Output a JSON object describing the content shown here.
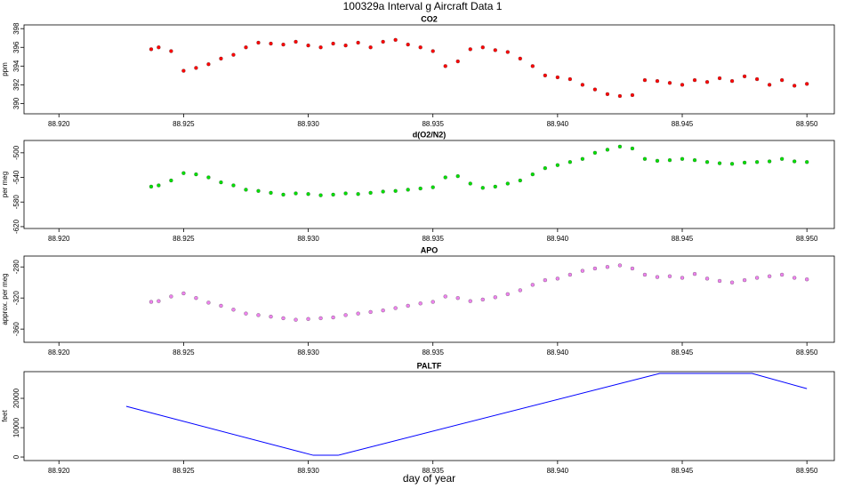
{
  "title": "100329a   Interval g Aircraft Data 1",
  "chart_data": [
    {
      "type": "scatter",
      "title": "CO2",
      "ylabel": "ppm",
      "color": "#ff0000",
      "xlim": [
        88.9186,
        88.9511
      ],
      "ylim": [
        388.9,
        398.4
      ],
      "xticks": [
        {
          "value": 88.92,
          "label": "88.920"
        },
        {
          "value": 88.925,
          "label": "88.925"
        },
        {
          "value": 88.93,
          "label": "88.930"
        },
        {
          "value": 88.935,
          "label": "88.935"
        },
        {
          "value": 88.94,
          "label": "88.940"
        },
        {
          "value": 88.945,
          "label": "88.945"
        },
        {
          "value": 88.95,
          "label": "88.950"
        }
      ],
      "yticks": [
        390,
        392,
        394,
        396,
        398
      ],
      "x": [
        88.9237,
        88.924,
        88.9245,
        88.925,
        88.9255,
        88.926,
        88.9265,
        88.927,
        88.9275,
        88.928,
        88.9285,
        88.929,
        88.9295,
        88.93,
        88.9305,
        88.931,
        88.9315,
        88.932,
        88.9325,
        88.933,
        88.9335,
        88.934,
        88.9345,
        88.935,
        88.9355,
        88.936,
        88.9365,
        88.937,
        88.9375,
        88.938,
        88.9385,
        88.939,
        88.9395,
        88.94,
        88.9405,
        88.941,
        88.9415,
        88.942,
        88.9425,
        88.943,
        88.9435,
        88.944,
        88.9445,
        88.945,
        88.9455,
        88.946,
        88.9465,
        88.947,
        88.9475,
        88.948,
        88.9485,
        88.949,
        88.9495,
        88.95
      ],
      "values": [
        395.8,
        396.0,
        395.6,
        393.5,
        393.8,
        394.2,
        394.8,
        395.2,
        396.0,
        396.5,
        396.4,
        396.3,
        396.6,
        396.2,
        396.0,
        396.4,
        396.2,
        396.5,
        396.0,
        396.6,
        396.8,
        396.3,
        396.0,
        395.6,
        394.0,
        394.5,
        395.8,
        396.0,
        395.7,
        395.5,
        394.8,
        394.0,
        393.0,
        392.8,
        392.6,
        392.0,
        391.5,
        391.0,
        390.8,
        390.9,
        392.5,
        392.4,
        392.2,
        392.0,
        392.5,
        392.3,
        392.7,
        392.4,
        392.9,
        392.6,
        392.0,
        392.5,
        391.9,
        392.1
      ]
    },
    {
      "type": "scatter",
      "title": "d(O2/N2)",
      "ylabel": "per meg",
      "color": "#00e000",
      "xlim": [
        88.9186,
        88.9511
      ],
      "ylim": [
        -623,
        -480
      ],
      "xticks": [
        {
          "value": 88.92,
          "label": "88.920"
        },
        {
          "value": 88.925,
          "label": "88.925"
        },
        {
          "value": 88.93,
          "label": "88.930"
        },
        {
          "value": 88.935,
          "label": "88.935"
        },
        {
          "value": 88.94,
          "label": "88.940"
        },
        {
          "value": 88.945,
          "label": "88.945"
        },
        {
          "value": 88.95,
          "label": "88.950"
        }
      ],
      "yticks": [
        -620,
        -580,
        -540,
        -500
      ],
      "x": [
        88.9237,
        88.924,
        88.9245,
        88.925,
        88.9255,
        88.926,
        88.9265,
        88.927,
        88.9275,
        88.928,
        88.9285,
        88.929,
        88.9295,
        88.93,
        88.9305,
        88.931,
        88.9315,
        88.932,
        88.9325,
        88.933,
        88.9335,
        88.934,
        88.9345,
        88.935,
        88.9355,
        88.936,
        88.9365,
        88.937,
        88.9375,
        88.938,
        88.9385,
        88.939,
        88.9395,
        88.94,
        88.9405,
        88.941,
        88.9415,
        88.942,
        88.9425,
        88.943,
        88.9435,
        88.944,
        88.9445,
        88.945,
        88.9455,
        88.946,
        88.9465,
        88.947,
        88.9475,
        88.948,
        88.9485,
        88.949,
        88.9495,
        88.95
      ],
      "values": [
        -555,
        -553,
        -545,
        -533,
        -535,
        -540,
        -548,
        -553,
        -560,
        -562,
        -565,
        -568,
        -566,
        -567,
        -569,
        -568,
        -566,
        -567,
        -565,
        -563,
        -562,
        -560,
        -558,
        -556,
        -540,
        -538,
        -550,
        -557,
        -555,
        -550,
        -545,
        -535,
        -525,
        -520,
        -515,
        -510,
        -500,
        -495,
        -490,
        -493,
        -510,
        -513,
        -512,
        -510,
        -512,
        -515,
        -517,
        -518,
        -516,
        -515,
        -514,
        -510,
        -514,
        -515
      ]
    },
    {
      "type": "scatter",
      "title": "APO",
      "ylabel": "approx. per meg",
      "color": "#ee82ee",
      "xlim": [
        88.9186,
        88.9511
      ],
      "ylim": [
        -377,
        -266
      ],
      "xticks": [
        {
          "value": 88.92,
          "label": "88.920"
        },
        {
          "value": 88.925,
          "label": "88.925"
        },
        {
          "value": 88.93,
          "label": "88.930"
        },
        {
          "value": 88.935,
          "label": "88.935"
        },
        {
          "value": 88.94,
          "label": "88.940"
        },
        {
          "value": 88.945,
          "label": "88.945"
        },
        {
          "value": 88.95,
          "label": "88.950"
        }
      ],
      "yticks": [
        -360,
        -320,
        -280
      ],
      "x": [
        88.9237,
        88.924,
        88.9245,
        88.925,
        88.9255,
        88.926,
        88.9265,
        88.927,
        88.9275,
        88.928,
        88.9285,
        88.929,
        88.9295,
        88.93,
        88.9305,
        88.931,
        88.9315,
        88.932,
        88.9325,
        88.933,
        88.9335,
        88.934,
        88.9345,
        88.935,
        88.9355,
        88.936,
        88.9365,
        88.937,
        88.9375,
        88.938,
        88.9385,
        88.939,
        88.9395,
        88.94,
        88.9405,
        88.941,
        88.9415,
        88.942,
        88.9425,
        88.943,
        88.9435,
        88.944,
        88.9445,
        88.945,
        88.9455,
        88.946,
        88.9465,
        88.947,
        88.9475,
        88.948,
        88.9485,
        88.949,
        88.9495,
        88.95
      ],
      "values": [
        -325,
        -324,
        -318,
        -314,
        -320,
        -326,
        -330,
        -335,
        -340,
        -342,
        -344,
        -346,
        -348,
        -347,
        -346,
        -345,
        -342,
        -340,
        -338,
        -336,
        -333,
        -330,
        -327,
        -325,
        -318,
        -320,
        -324,
        -322,
        -319,
        -315,
        -310,
        -303,
        -297,
        -295,
        -290,
        -285,
        -282,
        -280,
        -278,
        -282,
        -290,
        -293,
        -292,
        -294,
        -289,
        -295,
        -298,
        -300,
        -297,
        -294,
        -292,
        -290,
        -294,
        -296
      ]
    },
    {
      "type": "line",
      "title": "PALTF",
      "ylabel": "feet",
      "xlabel": "day of year",
      "color": "#0000ff",
      "xlim": [
        88.9186,
        88.9511
      ],
      "ylim": [
        -1200,
        29100
      ],
      "xticks": [
        {
          "value": 88.92,
          "label": "88.920"
        },
        {
          "value": 88.925,
          "label": "88.925"
        },
        {
          "value": 88.93,
          "label": "88.930"
        },
        {
          "value": 88.935,
          "label": "88.935"
        },
        {
          "value": 88.94,
          "label": "88.940"
        },
        {
          "value": 88.945,
          "label": "88.945"
        },
        {
          "value": 88.95,
          "label": "88.950"
        }
      ],
      "yticks": [
        0,
        10000,
        20000
      ],
      "x": [
        88.9227,
        88.9302,
        88.9312,
        88.9441,
        88.9478,
        88.95
      ],
      "values": [
        17270,
        600,
        600,
        28480,
        28480,
        23300
      ]
    }
  ]
}
